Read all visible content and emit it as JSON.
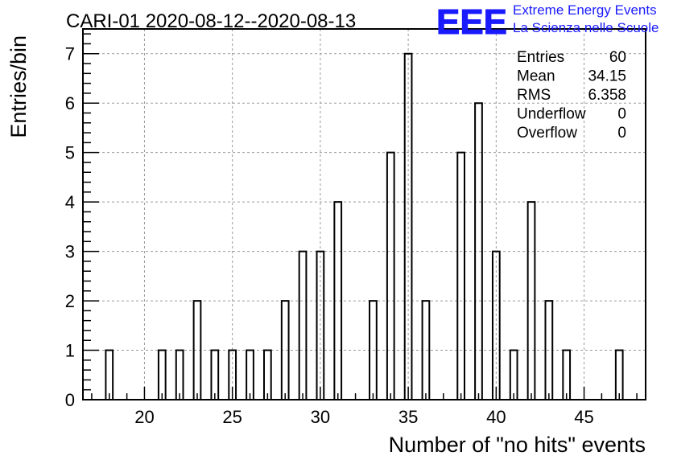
{
  "chart_data": {
    "type": "bar",
    "title": "CARI-01 2020-08-12--2020-08-13",
    "xlabel": "Number of \"no hits\" events",
    "ylabel": "Entries/bin",
    "xlim": [
      16.5,
      48.5
    ],
    "ylim": [
      0,
      7.5
    ],
    "x_ticks": [
      20,
      25,
      30,
      35,
      40,
      45
    ],
    "y_ticks": [
      0,
      1,
      2,
      3,
      4,
      5,
      6,
      7
    ],
    "bin_width": 0.4,
    "grid": true,
    "bins": [
      {
        "x": 18,
        "value": 1
      },
      {
        "x": 21,
        "value": 1
      },
      {
        "x": 22,
        "value": 1
      },
      {
        "x": 23,
        "value": 2
      },
      {
        "x": 24,
        "value": 1
      },
      {
        "x": 25,
        "value": 1
      },
      {
        "x": 26,
        "value": 1
      },
      {
        "x": 27,
        "value": 1
      },
      {
        "x": 28,
        "value": 2
      },
      {
        "x": 29,
        "value": 3
      },
      {
        "x": 30,
        "value": 3
      },
      {
        "x": 31,
        "value": 4
      },
      {
        "x": 33,
        "value": 2
      },
      {
        "x": 34,
        "value": 5
      },
      {
        "x": 35,
        "value": 7
      },
      {
        "x": 36,
        "value": 2
      },
      {
        "x": 38,
        "value": 5
      },
      {
        "x": 39,
        "value": 6
      },
      {
        "x": 40,
        "value": 3
      },
      {
        "x": 41,
        "value": 1
      },
      {
        "x": 42,
        "value": 4
      },
      {
        "x": 43,
        "value": 2
      },
      {
        "x": 44,
        "value": 1
      },
      {
        "x": 47,
        "value": 1
      }
    ],
    "stats": [
      {
        "label": "Entries",
        "value": "60"
      },
      {
        "label": "Mean",
        "value": "34.15"
      },
      {
        "label": "RMS",
        "value": "6.358"
      },
      {
        "label": "Underflow",
        "value": "0"
      },
      {
        "label": "Overflow",
        "value": "0"
      }
    ]
  },
  "logo": {
    "mark": "EEE",
    "line1": "Extreme Energy Events",
    "line2": "La Scienza nelle Scuole",
    "color": "#1a1aff"
  }
}
